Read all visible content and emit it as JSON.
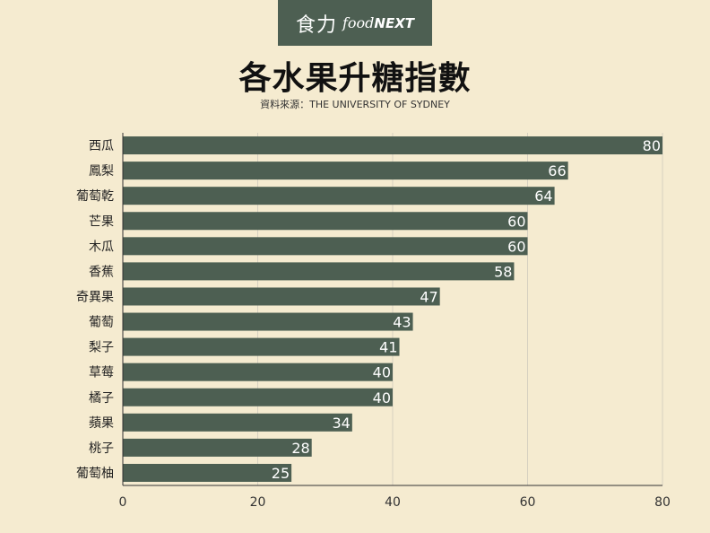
{
  "brand": {
    "name_cn": "食力",
    "name_en_prefix": "food",
    "name_en_suffix": "NEXT"
  },
  "colors": {
    "background": "#f5ebd0",
    "bar": "#4d5f52",
    "grid": "#d6d0c0",
    "axis": "#333333"
  },
  "chart_data": {
    "type": "bar",
    "orientation": "horizontal",
    "title": "各水果升糖指數",
    "subtitle": "資料來源：THE UNIVERSITY OF SYDNEY",
    "categories": [
      "西瓜",
      "鳳梨",
      "葡萄乾",
      "芒果",
      "木瓜",
      "香蕉",
      "奇異果",
      "葡萄",
      "梨子",
      "草莓",
      "橘子",
      "蘋果",
      "桃子",
      "葡萄柚"
    ],
    "values": [
      80,
      66,
      64,
      60,
      60,
      58,
      47,
      43,
      41,
      40,
      40,
      34,
      28,
      25
    ],
    "xlim": [
      0,
      80
    ],
    "xticks": [
      0,
      20,
      40,
      60,
      80
    ],
    "grid": true,
    "data_labels": true
  }
}
